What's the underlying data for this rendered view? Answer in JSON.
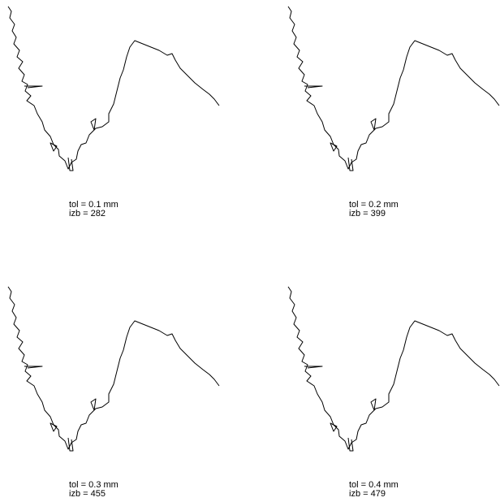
{
  "panels": [
    {
      "tol": "tol = 0.1 mm",
      "izb": "izb = 282"
    },
    {
      "tol": "tol = 0.2 mm",
      "izb": "izb = 399"
    },
    {
      "tol": "tol = 0.3 mm",
      "izb": "izb = 455"
    },
    {
      "tol": "tol = 0.4 mm",
      "izb": "izb = 479"
    }
  ]
}
